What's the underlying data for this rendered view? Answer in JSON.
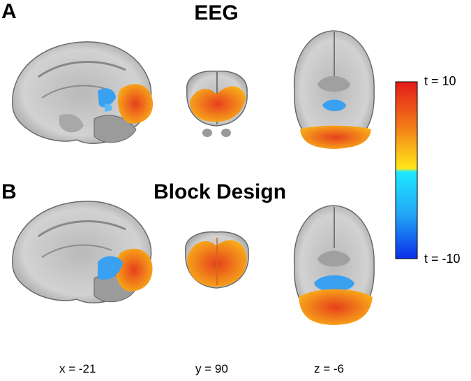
{
  "panels": [
    {
      "letter": "A",
      "title": "EEG"
    },
    {
      "letter": "B",
      "title": "Block Design"
    }
  ],
  "coordinates": [
    "x = -21",
    "y = 90",
    "z = -6"
  ],
  "colorbar": {
    "max_label": "t = 10",
    "min_label": "t = -10",
    "colors": {
      "top": "#e8241a",
      "mid_warm": "#ffe21a",
      "mid_cool": "#1ae8ff",
      "bottom": "#0a30e8"
    }
  },
  "colors": {
    "activation_warm": "#f07a18",
    "activation_cool": "#3aa0f0",
    "brain": "#c8c8c8"
  }
}
